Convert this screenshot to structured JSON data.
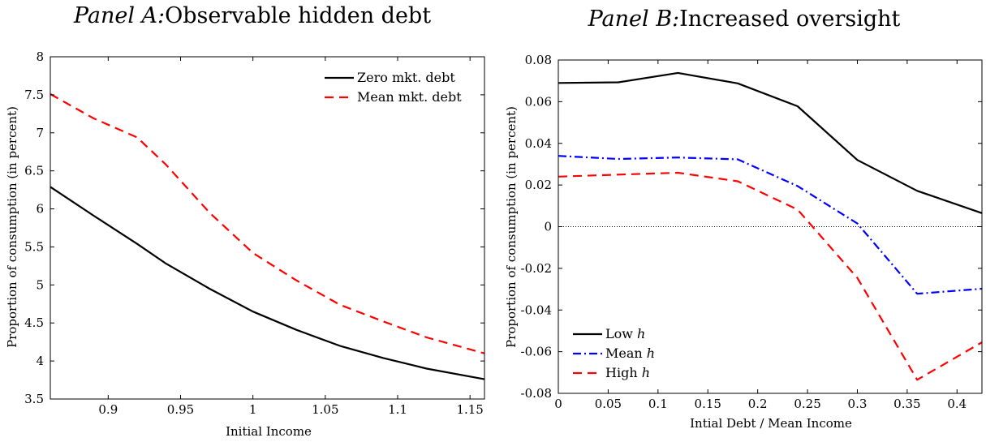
{
  "chart_data": [
    {
      "type": "line",
      "title_prefix": "Panel A:",
      "title_rest": "Observable hidden debt",
      "xlabel": "Initial Income",
      "ylabel": "Proportion of consumption (in percent)",
      "xlim": [
        0.86,
        1.16
      ],
      "ylim": [
        3.5,
        8
      ],
      "xticks": [
        0.9,
        0.95,
        1,
        1.05,
        1.1,
        1.15
      ],
      "xtick_labels": [
        "0.9",
        "0.95",
        "1",
        "1.05",
        "1.1",
        "1.15"
      ],
      "yticks": [
        3.5,
        4,
        4.5,
        5,
        5.5,
        6,
        6.5,
        7,
        7.5,
        8
      ],
      "ytick_labels": [
        "3.5",
        "4",
        "4.5",
        "5",
        "5.5",
        "6",
        "6.5",
        "7",
        "7.5",
        "8"
      ],
      "legend_position": "top-right",
      "series": [
        {
          "name": "Zero mkt. debt",
          "color": "#000000",
          "dash": "solid",
          "x": [
            0.86,
            0.89,
            0.92,
            0.94,
            0.97,
            1.0,
            1.03,
            1.06,
            1.09,
            1.12,
            1.16
          ],
          "y": [
            6.29,
            5.91,
            5.54,
            5.28,
            4.95,
            4.65,
            4.41,
            4.2,
            4.04,
            3.9,
            3.76
          ]
        },
        {
          "name": "Mean mkt. debt",
          "color": "#ff0000",
          "dash": "dashed",
          "x": [
            0.86,
            0.89,
            0.92,
            0.94,
            0.97,
            1.0,
            1.03,
            1.06,
            1.09,
            1.12,
            1.16
          ],
          "y": [
            7.51,
            7.19,
            6.94,
            6.58,
            5.95,
            5.42,
            5.06,
            4.74,
            4.52,
            4.31,
            4.1
          ]
        }
      ]
    },
    {
      "type": "line",
      "title_prefix": "Panel B:",
      "title_rest": "Increased oversight",
      "xlabel": "Intial Debt / Mean Income",
      "ylabel": "Proportion of consumption (in percent)",
      "xlim": [
        0,
        0.425
      ],
      "ylim": [
        -0.08,
        0.08
      ],
      "xticks": [
        0,
        0.05,
        0.1,
        0.15,
        0.2,
        0.25,
        0.3,
        0.35,
        0.4
      ],
      "xtick_labels": [
        "0",
        "0.05",
        "0.1",
        "0.15",
        "0.2",
        "0.25",
        "0.3",
        "0.35",
        "0.4"
      ],
      "yticks": [
        -0.08,
        -0.06,
        -0.04,
        -0.02,
        0,
        0.02,
        0.04,
        0.06,
        0.08
      ],
      "ytick_labels": [
        "-0.08",
        "-0.06",
        "-0.04",
        "-0.02",
        "0",
        "0.02",
        "0.04",
        "0.06",
        "0.08"
      ],
      "zero_line": true,
      "legend_position": "bottom-left",
      "series": [
        {
          "name": "Low",
          "name_italic": "h",
          "color": "#000000",
          "dash": "solid",
          "x": [
            0,
            0.06,
            0.12,
            0.18,
            0.24,
            0.3,
            0.36,
            0.425
          ],
          "y": [
            0.069,
            0.0693,
            0.0738,
            0.0688,
            0.0578,
            0.032,
            0.0172,
            0.0065
          ]
        },
        {
          "name": "Mean",
          "name_italic": "h",
          "color": "#0000ff",
          "dash": "dashdot",
          "x": [
            0,
            0.06,
            0.12,
            0.18,
            0.24,
            0.3,
            0.36,
            0.425
          ],
          "y": [
            0.034,
            0.0325,
            0.0332,
            0.0323,
            0.0195,
            0.0015,
            -0.0322,
            -0.0298
          ]
        },
        {
          "name": "High",
          "name_italic": "h",
          "color": "#ff0000",
          "dash": "dashed",
          "x": [
            0,
            0.06,
            0.12,
            0.18,
            0.24,
            0.3,
            0.36,
            0.425
          ],
          "y": [
            0.024,
            0.025,
            0.0259,
            0.0218,
            0.0082,
            -0.0246,
            -0.0735,
            -0.0555
          ]
        }
      ]
    }
  ]
}
